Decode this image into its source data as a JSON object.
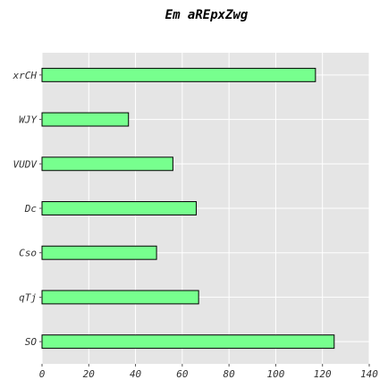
{
  "chart_data": {
    "type": "bar",
    "orientation": "horizontal",
    "title": "Em aREpxZwg",
    "xlabel": "",
    "ylabel": "",
    "categories": [
      "SO",
      "qTj",
      "Cso",
      "Dc",
      "VUDV",
      "WJY",
      "xrCH"
    ],
    "values": [
      125,
      67,
      49,
      66,
      56,
      37,
      117
    ],
    "xlim": [
      0,
      140
    ],
    "xticks": [
      0,
      20,
      40,
      60,
      80,
      100,
      120,
      140
    ],
    "grid": true,
    "legend": "none",
    "colors": {
      "bar": "#77ff8e",
      "bar_edge": "#000000",
      "plot_background": "#e5e5e5",
      "grid": "#ffffff"
    }
  }
}
